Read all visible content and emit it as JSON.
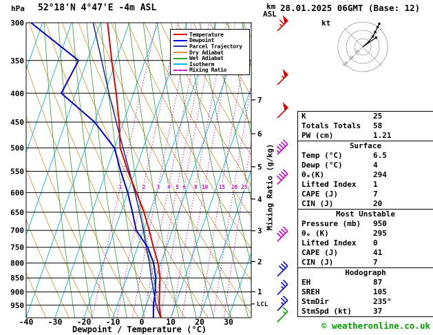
{
  "header": {
    "pressure_unit": "hPa",
    "title": "52°18'N 4°47'E -4m ASL",
    "km_label": "km",
    "asl_label": "ASL",
    "datetime": "28.01.2025 06GMT (Base: 12)"
  },
  "footer": {
    "credit": "© weatheronline.co.uk"
  },
  "legend": {
    "items": [
      {
        "label": "Temperature",
        "color": "#dd0000",
        "dash": false
      },
      {
        "label": "Dewpoint",
        "color": "#0000dd",
        "dash": false
      },
      {
        "label": "Parcel Trajectory",
        "color": "#223399",
        "dash": false
      },
      {
        "label": "Dry Adiabat",
        "color": "#d89030",
        "dash": false
      },
      {
        "label": "Wet Adiabat",
        "color": "#30a030",
        "dash": false
      },
      {
        "label": "Isotherm",
        "color": "#00b8e8",
        "dash": false
      },
      {
        "label": "Mixing Ratio",
        "color": "#d800d8",
        "dash": true
      }
    ]
  },
  "chart_data": {
    "type": "skewt_log_p_sounding",
    "pressure_ticks_hpa": [
      300,
      350,
      400,
      450,
      500,
      550,
      600,
      650,
      700,
      750,
      800,
      850,
      900,
      950
    ],
    "pressure_range_hpa": [
      300,
      1000
    ],
    "temp_ticks_c": [
      -40,
      -30,
      -20,
      -10,
      0,
      10,
      20,
      30
    ],
    "temp_axis_label": "Dewpoint / Temperature (°C)",
    "mixing_ratio_axis_label": "Mixing Ratio (g/kg)",
    "mixing_ratio_values_gkg": [
      1,
      2,
      3,
      4,
      5,
      6,
      8,
      10,
      15,
      20,
      25
    ],
    "km_asl_ticks": [
      1,
      2,
      3,
      4,
      5,
      6,
      7
    ],
    "lcl_label": "LCL",
    "lcl_pressure_hpa": 945,
    "colors": {
      "isotherm": "#00b8e8",
      "dry_adiabat": "#d89030",
      "wet_adiabat": "#30a030",
      "mixing_ratio": "#d800d8",
      "grid": "#000000"
    },
    "series": [
      {
        "name": "Parcel Trajectory",
        "color": "#223399",
        "width": 1.6,
        "points_p_t": [
          [
            1000,
            6.5
          ],
          [
            950,
            3.5
          ],
          [
            900,
            1
          ],
          [
            850,
            -1.5
          ],
          [
            800,
            -4
          ],
          [
            750,
            -7
          ],
          [
            700,
            -10
          ],
          [
            650,
            -13.5
          ],
          [
            600,
            -17.5
          ],
          [
            550,
            -22
          ],
          [
            500,
            -27
          ],
          [
            450,
            -32.5
          ],
          [
            400,
            -38.5
          ],
          [
            350,
            -45
          ],
          [
            300,
            -52.5
          ]
        ]
      },
      {
        "name": "Dewpoint",
        "color": "#0000dd",
        "width": 2,
        "points_p_t": [
          [
            1000,
            4
          ],
          [
            950,
            2.5
          ],
          [
            900,
            1.5
          ],
          [
            850,
            0
          ],
          [
            800,
            -2.5
          ],
          [
            750,
            -6.5
          ],
          [
            700,
            -12.5
          ],
          [
            650,
            -16
          ],
          [
            600,
            -20
          ],
          [
            550,
            -25
          ],
          [
            500,
            -30
          ],
          [
            450,
            -40
          ],
          [
            400,
            -55
          ],
          [
            350,
            -53
          ],
          [
            300,
            -74
          ]
        ]
      },
      {
        "name": "Temperature",
        "color": "#dd0000",
        "width": 2,
        "points_p_t": [
          [
            1000,
            6.5
          ],
          [
            950,
            4.5
          ],
          [
            900,
            3
          ],
          [
            850,
            1.5
          ],
          [
            800,
            -1
          ],
          [
            750,
            -4.5
          ],
          [
            700,
            -8
          ],
          [
            650,
            -12
          ],
          [
            600,
            -17
          ],
          [
            550,
            -22.5
          ],
          [
            500,
            -28
          ],
          [
            450,
            -31.5
          ],
          [
            400,
            -36
          ],
          [
            350,
            -41.5
          ],
          [
            300,
            -47.5
          ]
        ]
      }
    ],
    "wind_barbs": [
      {
        "p": 305,
        "kt": 65,
        "color": "#dd0000"
      },
      {
        "p": 380,
        "kt": 55,
        "color": "#dd0000"
      },
      {
        "p": 435,
        "kt": 50,
        "color": "#dd0000"
      },
      {
        "p": 505,
        "kt": 45,
        "color": "#cc00cc"
      },
      {
        "p": 570,
        "kt": 40,
        "color": "#cc00cc"
      },
      {
        "p": 720,
        "kt": 40,
        "color": "#cc00cc"
      },
      {
        "p": 830,
        "kt": 30,
        "color": "#0000dd"
      },
      {
        "p": 895,
        "kt": 25,
        "color": "#0000dd"
      },
      {
        "p": 955,
        "kt": 25,
        "color": "#0000dd"
      },
      {
        "p": 1000,
        "kt": 15,
        "color": "#00a000"
      }
    ],
    "hodograph": {
      "unit_label": "kt",
      "rings_kt": [
        20,
        40,
        60
      ],
      "trace_uv_kt": [
        [
          2,
          1
        ],
        [
          6,
          5
        ],
        [
          12,
          10
        ],
        [
          18,
          17
        ],
        [
          24,
          25
        ],
        [
          30,
          36
        ],
        [
          36,
          48
        ],
        [
          40,
          56
        ]
      ],
      "storm_dir_deg": 235,
      "storm_spd_kt": 37
    }
  },
  "table": {
    "sections": [
      {
        "header": null,
        "rows": [
          [
            "K",
            "25"
          ],
          [
            "Totals Totals",
            "58"
          ],
          [
            "PW (cm)",
            "1.21"
          ]
        ]
      },
      {
        "header": "Surface",
        "rows": [
          [
            "Temp (°C)",
            "6.5"
          ],
          [
            "Dewp (°C)",
            "4"
          ],
          [
            "θₑ(K)",
            "294"
          ],
          [
            "Lifted Index",
            "1"
          ],
          [
            "CAPE (J)",
            "7"
          ],
          [
            "CIN (J)",
            "20"
          ]
        ]
      },
      {
        "header": "Most Unstable",
        "rows": [
          [
            "Pressure (mb)",
            "950"
          ],
          [
            "θₑ (K)",
            "295"
          ],
          [
            "Lifted Index",
            "0"
          ],
          [
            "CAPE (J)",
            "41"
          ],
          [
            "CIN (J)",
            "7"
          ]
        ]
      },
      {
        "header": "Hodograph",
        "rows": [
          [
            "EH",
            "87"
          ],
          [
            "SREH",
            "105"
          ],
          [
            "StmDir",
            "235°"
          ],
          [
            "StmSpd (kt)",
            "37"
          ]
        ]
      }
    ]
  }
}
